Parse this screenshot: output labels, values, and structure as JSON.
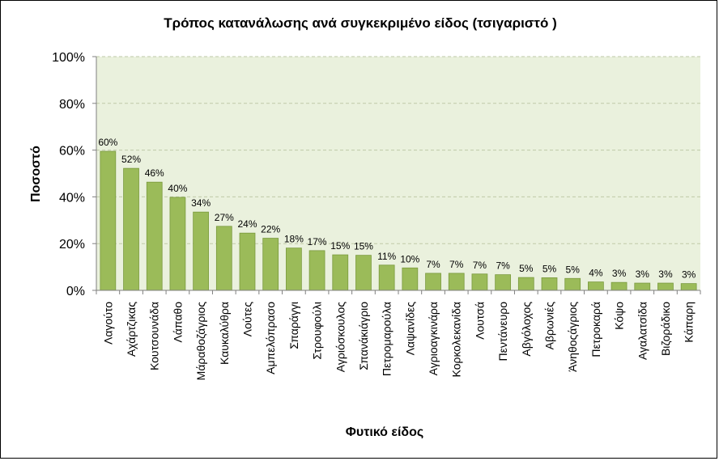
{
  "chart_data": {
    "type": "bar",
    "title": "Τρόπος κατανάλωσης ανά συγκεκριμένο είδος (τσιγαριστό )",
    "xlabel": "Φυτικό είδος",
    "ylabel": "Ποσοστό",
    "ylim": [
      0,
      100
    ],
    "yticks": [
      "0%",
      "20%",
      "40%",
      "60%",
      "80%",
      "100%"
    ],
    "yticks_values": [
      0,
      20,
      40,
      60,
      80,
      100
    ],
    "grid": true,
    "categories": [
      "Λαγούτο",
      "Αχάρτζικας",
      "Κουτσουνάδα",
      "Λάπαθο",
      "Μάραθοζάγριος",
      "Καυκαλύθρα",
      "Λούτες",
      "Αμπελόπρασο",
      "Σπαράγγι",
      "Στρουφούλι",
      "Αγριόσκουλος",
      "Σπανάκιάγριο",
      "Πετρομαρούλα",
      "Λαψανίδες",
      "Αγριοαγκινάρα",
      "Κορκολεκανίδα",
      "Λουτσά",
      "Πεντάνευρο",
      "Αβγόλοχος",
      "Αβρωνιές",
      "Άνηθοςάγριος",
      "Πετροκαρά",
      "Κόψο",
      "Αγαλατσίδα",
      "Βιζοράδικο",
      "Κάπαρη"
    ],
    "values": [
      59.5,
      52.2,
      46.3,
      39.8,
      33.5,
      27.4,
      24.5,
      22.3,
      18.1,
      17.0,
      15.2,
      15.0,
      10.8,
      9.6,
      7.3,
      7.3,
      7.0,
      6.7,
      5.5,
      5.4,
      5.1,
      3.6,
      3.4,
      3.1,
      3.1,
      2.9
    ],
    "data_labels": [
      "60%",
      "52%",
      "46%",
      "40%",
      "34%",
      "27%",
      "24%",
      "22%",
      "18%",
      "17%",
      "15%",
      "15%",
      "11%",
      "10%",
      "7%",
      "7%",
      "7%",
      "7%",
      "5%",
      "5%",
      "5%",
      "4%",
      "3%",
      "3%",
      "3%",
      "3%"
    ],
    "colors": {
      "bar": "#9bbb59",
      "bar_edge": "#7a9a3e",
      "plot_bg": "#eaf1dd",
      "grid": "#bfc9a8"
    }
  }
}
